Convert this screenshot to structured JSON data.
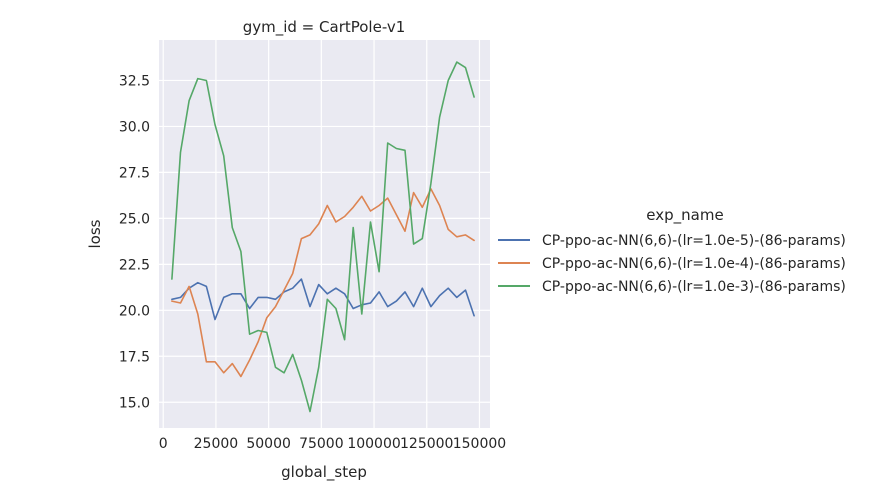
{
  "chart_data": {
    "type": "line",
    "title": "gym_id = CartPole-v1",
    "xlabel": "global_step",
    "ylabel": "loss",
    "xlim": [
      -2000,
      155000
    ],
    "ylim": [
      13.6,
      34.7
    ],
    "xticks": [
      0,
      25000,
      50000,
      75000,
      100000,
      125000,
      150000
    ],
    "yticks": [
      15.0,
      17.5,
      20.0,
      22.5,
      25.0,
      27.5,
      30.0,
      32.5
    ],
    "xtick_labels": [
      "0",
      "25000",
      "50000",
      "75000",
      "100000",
      "125000",
      "150000"
    ],
    "ytick_labels": [
      "15.0",
      "17.5",
      "20.0",
      "22.5",
      "25.0",
      "27.5",
      "30.0",
      "32.5"
    ],
    "grid": true,
    "legend_title": "exp_name",
    "legend_position": "right",
    "x": [
      4096,
      8192,
      12288,
      16384,
      20480,
      24576,
      28672,
      32768,
      36864,
      40960,
      45056,
      49152,
      53248,
      57344,
      61440,
      65536,
      69632,
      73728,
      77824,
      81920,
      86016,
      90112,
      94208,
      98304,
      102400,
      106496,
      110592,
      114688,
      118784,
      122880,
      126976,
      131072,
      135168,
      139264,
      143360,
      147456
    ],
    "series": [
      {
        "name": "CP-ppo-ac-NN(6,6)-(lr=1.0e-5)-(86-params)",
        "color": "#4c72b0",
        "values": [
          20.6,
          20.7,
          21.2,
          21.5,
          21.3,
          19.5,
          20.7,
          20.9,
          20.9,
          20.1,
          20.7,
          20.7,
          20.6,
          21.0,
          21.2,
          21.7,
          20.2,
          21.4,
          20.9,
          21.2,
          20.9,
          20.1,
          20.3,
          20.4,
          21.0,
          20.2,
          20.5,
          21.0,
          20.2,
          21.2,
          20.2,
          20.8,
          21.2,
          20.7,
          21.1,
          19.7
        ]
      },
      {
        "name": "CP-ppo-ac-NN(6,6)-(lr=1.0e-4)-(86-params)",
        "color": "#dd8452",
        "values": [
          20.5,
          20.4,
          21.3,
          19.8,
          17.2,
          17.2,
          16.6,
          17.1,
          16.4,
          17.3,
          18.3,
          19.6,
          20.2,
          21.1,
          22.0,
          23.9,
          24.1,
          24.7,
          25.7,
          24.8,
          25.1,
          25.6,
          26.2,
          25.4,
          25.7,
          26.1,
          25.2,
          24.3,
          26.4,
          25.6,
          26.6,
          25.7,
          24.4,
          24.0,
          24.1,
          23.8
        ]
      },
      {
        "name": "CP-ppo-ac-NN(6,6)-(lr=1.0e-3)-(86-params)",
        "color": "#55a868",
        "values": [
          21.7,
          28.6,
          31.4,
          32.6,
          32.5,
          30.1,
          28.4,
          24.5,
          23.2,
          18.7,
          18.9,
          18.8,
          16.9,
          16.6,
          17.6,
          16.2,
          14.5,
          16.9,
          20.6,
          20.1,
          18.4,
          24.5,
          19.8,
          24.8,
          22.1,
          29.1,
          28.8,
          28.7,
          23.6,
          23.9,
          26.9,
          30.5,
          32.5,
          33.5,
          33.2,
          31.6
        ]
      }
    ]
  }
}
